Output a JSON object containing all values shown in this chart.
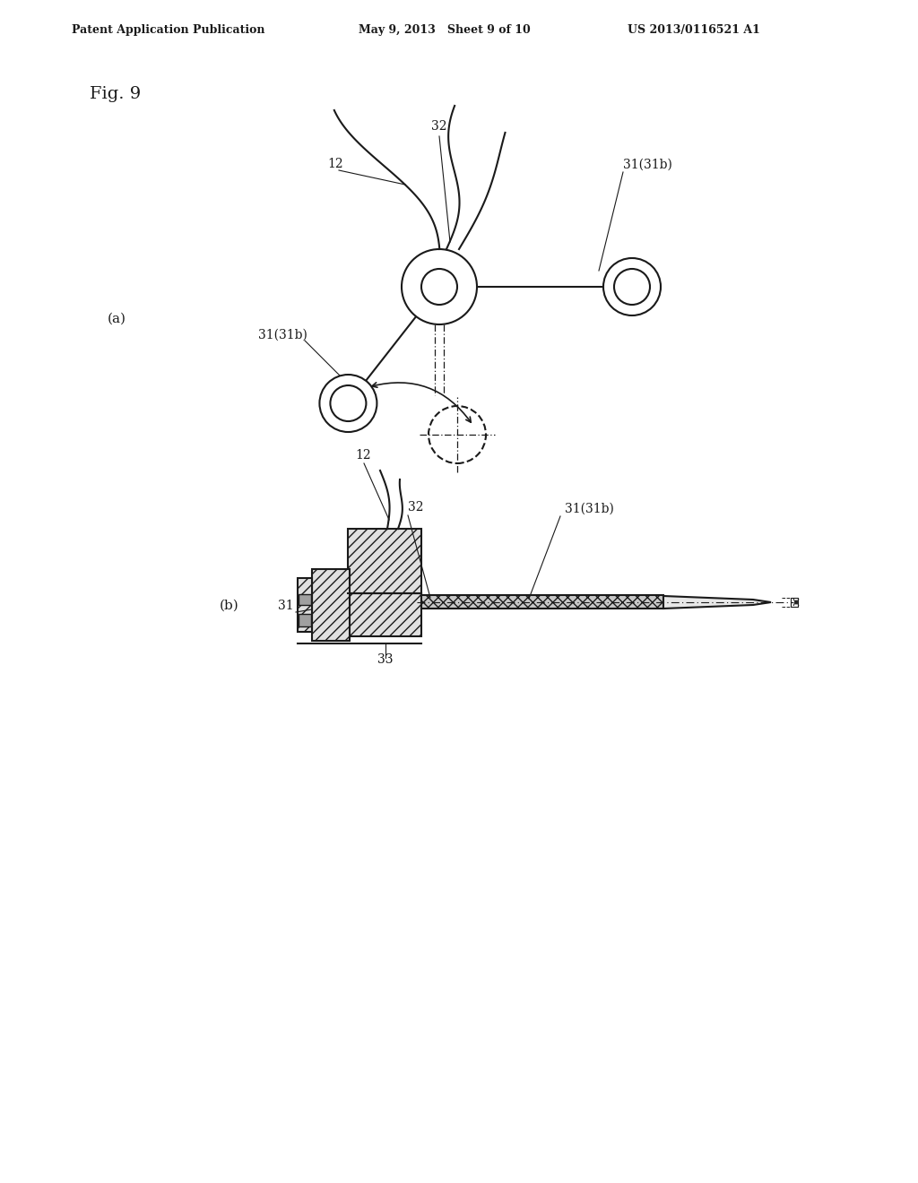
{
  "bg_color": "#ffffff",
  "line_color": "#1a1a1a",
  "header_left": "Patent Application Publication",
  "header_mid": "May 9, 2013   Sheet 9 of 10",
  "header_right": "US 2013/0116521 A1",
  "fig_label": "Fig. 9",
  "sub_a_label": "(a)",
  "sub_b_label": "(b)",
  "labels": {
    "12_a": "12",
    "32_a": "32",
    "31_31b_right": "31(31b)",
    "31_31b_left": "31(31b)",
    "12_b": "12",
    "32_b": "32",
    "31_31b_b": "31(31b)",
    "31_b": "31",
    "33_b": "33"
  }
}
